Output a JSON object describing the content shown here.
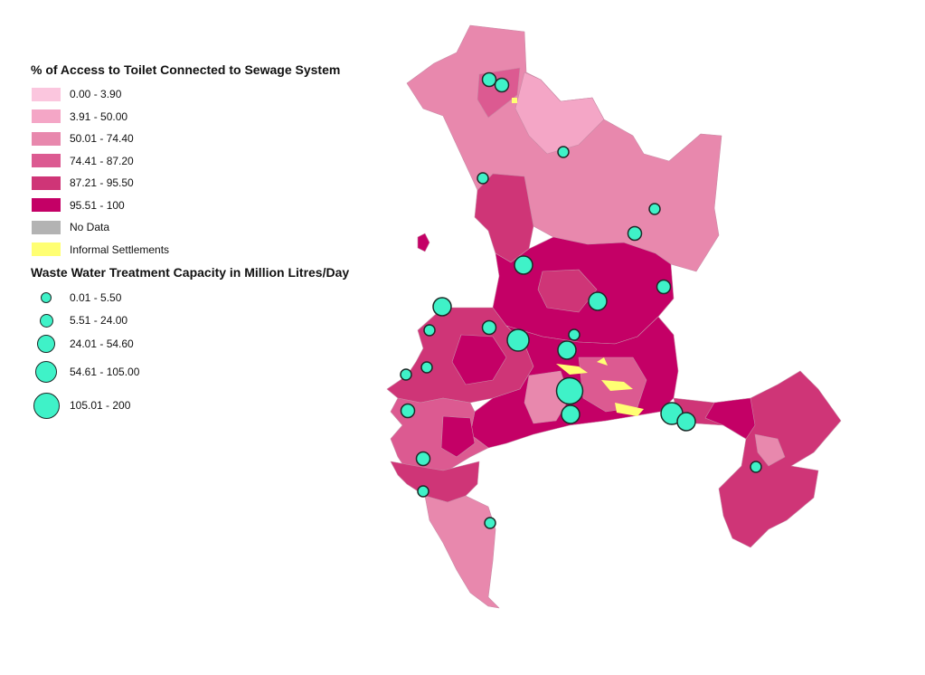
{
  "legend_access": {
    "title": "% of Access to Toilet Connected to Sewage System",
    "classes": [
      {
        "label": "0.00 - 3.90",
        "color": "#fbc6de"
      },
      {
        "label": "3.91 - 50.00",
        "color": "#f4a6c6"
      },
      {
        "label": "50.01 - 74.40",
        "color": "#e888ad"
      },
      {
        "label": "74.41 - 87.20",
        "color": "#dc5a91"
      },
      {
        "label": "87.21 - 95.50",
        "color": "#cf3577"
      },
      {
        "label": "95.51 - 100",
        "color": "#c40066"
      },
      {
        "label": "No Data",
        "color": "#b3b3b3"
      },
      {
        "label": "Informal Settlements",
        "color": "#ffff73"
      }
    ]
  },
  "legend_capacity": {
    "title": "Waste Water Treatment Capacity in Million Litres/Day",
    "fill": "#3ff2c8",
    "classes": [
      {
        "label": "0.01 - 5.50"
      },
      {
        "label": "5.51 - 24.00"
      },
      {
        "label": "24.01 - 54.60"
      },
      {
        "label": "54.61 - 105.00"
      },
      {
        "label": "105.01 - 200"
      }
    ]
  }
}
